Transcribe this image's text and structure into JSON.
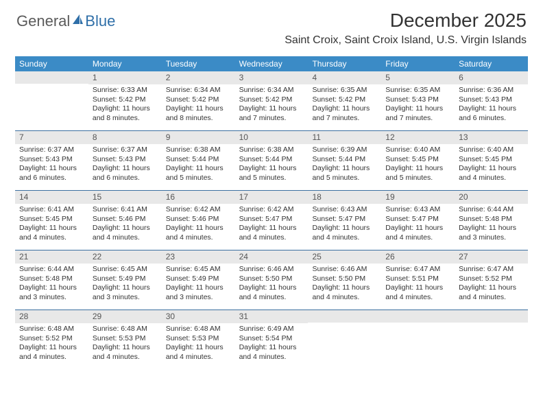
{
  "logo": {
    "general": "General",
    "blue": "Blue"
  },
  "title": "December 2025",
  "location": "Saint Croix, Saint Croix Island, U.S. Virgin Islands",
  "colors": {
    "header_bar": "#3b8bc6",
    "week_border": "#3b6fa0",
    "daynum_bg": "#e8e8e8",
    "logo_gray": "#5a5a5a",
    "logo_blue": "#2f6fa8"
  },
  "daysOfWeek": [
    "Sunday",
    "Monday",
    "Tuesday",
    "Wednesday",
    "Thursday",
    "Friday",
    "Saturday"
  ],
  "weeks": [
    [
      {
        "n": "",
        "sr": "",
        "ss": "",
        "dl": ""
      },
      {
        "n": "1",
        "sr": "Sunrise: 6:33 AM",
        "ss": "Sunset: 5:42 PM",
        "dl": "Daylight: 11 hours and 8 minutes."
      },
      {
        "n": "2",
        "sr": "Sunrise: 6:34 AM",
        "ss": "Sunset: 5:42 PM",
        "dl": "Daylight: 11 hours and 8 minutes."
      },
      {
        "n": "3",
        "sr": "Sunrise: 6:34 AM",
        "ss": "Sunset: 5:42 PM",
        "dl": "Daylight: 11 hours and 7 minutes."
      },
      {
        "n": "4",
        "sr": "Sunrise: 6:35 AM",
        "ss": "Sunset: 5:42 PM",
        "dl": "Daylight: 11 hours and 7 minutes."
      },
      {
        "n": "5",
        "sr": "Sunrise: 6:35 AM",
        "ss": "Sunset: 5:43 PM",
        "dl": "Daylight: 11 hours and 7 minutes."
      },
      {
        "n": "6",
        "sr": "Sunrise: 6:36 AM",
        "ss": "Sunset: 5:43 PM",
        "dl": "Daylight: 11 hours and 6 minutes."
      }
    ],
    [
      {
        "n": "7",
        "sr": "Sunrise: 6:37 AM",
        "ss": "Sunset: 5:43 PM",
        "dl": "Daylight: 11 hours and 6 minutes."
      },
      {
        "n": "8",
        "sr": "Sunrise: 6:37 AM",
        "ss": "Sunset: 5:43 PM",
        "dl": "Daylight: 11 hours and 6 minutes."
      },
      {
        "n": "9",
        "sr": "Sunrise: 6:38 AM",
        "ss": "Sunset: 5:44 PM",
        "dl": "Daylight: 11 hours and 5 minutes."
      },
      {
        "n": "10",
        "sr": "Sunrise: 6:38 AM",
        "ss": "Sunset: 5:44 PM",
        "dl": "Daylight: 11 hours and 5 minutes."
      },
      {
        "n": "11",
        "sr": "Sunrise: 6:39 AM",
        "ss": "Sunset: 5:44 PM",
        "dl": "Daylight: 11 hours and 5 minutes."
      },
      {
        "n": "12",
        "sr": "Sunrise: 6:40 AM",
        "ss": "Sunset: 5:45 PM",
        "dl": "Daylight: 11 hours and 5 minutes."
      },
      {
        "n": "13",
        "sr": "Sunrise: 6:40 AM",
        "ss": "Sunset: 5:45 PM",
        "dl": "Daylight: 11 hours and 4 minutes."
      }
    ],
    [
      {
        "n": "14",
        "sr": "Sunrise: 6:41 AM",
        "ss": "Sunset: 5:45 PM",
        "dl": "Daylight: 11 hours and 4 minutes."
      },
      {
        "n": "15",
        "sr": "Sunrise: 6:41 AM",
        "ss": "Sunset: 5:46 PM",
        "dl": "Daylight: 11 hours and 4 minutes."
      },
      {
        "n": "16",
        "sr": "Sunrise: 6:42 AM",
        "ss": "Sunset: 5:46 PM",
        "dl": "Daylight: 11 hours and 4 minutes."
      },
      {
        "n": "17",
        "sr": "Sunrise: 6:42 AM",
        "ss": "Sunset: 5:47 PM",
        "dl": "Daylight: 11 hours and 4 minutes."
      },
      {
        "n": "18",
        "sr": "Sunrise: 6:43 AM",
        "ss": "Sunset: 5:47 PM",
        "dl": "Daylight: 11 hours and 4 minutes."
      },
      {
        "n": "19",
        "sr": "Sunrise: 6:43 AM",
        "ss": "Sunset: 5:47 PM",
        "dl": "Daylight: 11 hours and 4 minutes."
      },
      {
        "n": "20",
        "sr": "Sunrise: 6:44 AM",
        "ss": "Sunset: 5:48 PM",
        "dl": "Daylight: 11 hours and 3 minutes."
      }
    ],
    [
      {
        "n": "21",
        "sr": "Sunrise: 6:44 AM",
        "ss": "Sunset: 5:48 PM",
        "dl": "Daylight: 11 hours and 3 minutes."
      },
      {
        "n": "22",
        "sr": "Sunrise: 6:45 AM",
        "ss": "Sunset: 5:49 PM",
        "dl": "Daylight: 11 hours and 3 minutes."
      },
      {
        "n": "23",
        "sr": "Sunrise: 6:45 AM",
        "ss": "Sunset: 5:49 PM",
        "dl": "Daylight: 11 hours and 3 minutes."
      },
      {
        "n": "24",
        "sr": "Sunrise: 6:46 AM",
        "ss": "Sunset: 5:50 PM",
        "dl": "Daylight: 11 hours and 4 minutes."
      },
      {
        "n": "25",
        "sr": "Sunrise: 6:46 AM",
        "ss": "Sunset: 5:50 PM",
        "dl": "Daylight: 11 hours and 4 minutes."
      },
      {
        "n": "26",
        "sr": "Sunrise: 6:47 AM",
        "ss": "Sunset: 5:51 PM",
        "dl": "Daylight: 11 hours and 4 minutes."
      },
      {
        "n": "27",
        "sr": "Sunrise: 6:47 AM",
        "ss": "Sunset: 5:52 PM",
        "dl": "Daylight: 11 hours and 4 minutes."
      }
    ],
    [
      {
        "n": "28",
        "sr": "Sunrise: 6:48 AM",
        "ss": "Sunset: 5:52 PM",
        "dl": "Daylight: 11 hours and 4 minutes."
      },
      {
        "n": "29",
        "sr": "Sunrise: 6:48 AM",
        "ss": "Sunset: 5:53 PM",
        "dl": "Daylight: 11 hours and 4 minutes."
      },
      {
        "n": "30",
        "sr": "Sunrise: 6:48 AM",
        "ss": "Sunset: 5:53 PM",
        "dl": "Daylight: 11 hours and 4 minutes."
      },
      {
        "n": "31",
        "sr": "Sunrise: 6:49 AM",
        "ss": "Sunset: 5:54 PM",
        "dl": "Daylight: 11 hours and 4 minutes."
      },
      {
        "n": "",
        "sr": "",
        "ss": "",
        "dl": ""
      },
      {
        "n": "",
        "sr": "",
        "ss": "",
        "dl": ""
      },
      {
        "n": "",
        "sr": "",
        "ss": "",
        "dl": ""
      }
    ]
  ]
}
